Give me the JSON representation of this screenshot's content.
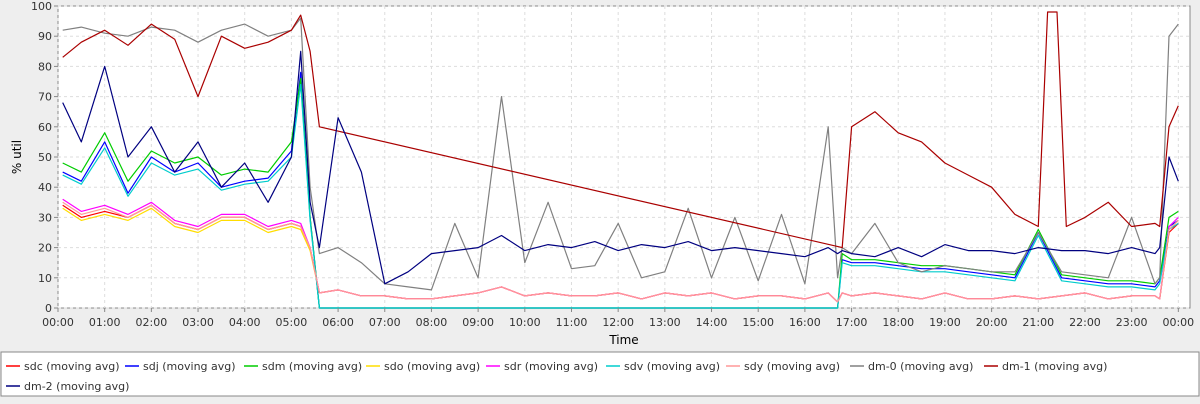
{
  "chart_data": {
    "type": "line",
    "title": "",
    "xlabel": "Time",
    "ylabel": "% util",
    "ylim": [
      0,
      100
    ],
    "xlim_hours": [
      0,
      24.25
    ],
    "grid": true,
    "legend_position": "bottom",
    "y_ticks": [
      0,
      10,
      20,
      30,
      40,
      50,
      60,
      70,
      80,
      90,
      100
    ],
    "x_ticks": [
      {
        "hour": 0,
        "label": "00:00"
      },
      {
        "hour": 1,
        "label": "01:00"
      },
      {
        "hour": 2,
        "label": "02:00"
      },
      {
        "hour": 3,
        "label": "03:00"
      },
      {
        "hour": 4,
        "label": "04:00"
      },
      {
        "hour": 5,
        "label": "05:00"
      },
      {
        "hour": 6,
        "label": "06:00"
      },
      {
        "hour": 7,
        "label": "07:00"
      },
      {
        "hour": 8,
        "label": "08:00"
      },
      {
        "hour": 9,
        "label": "09:00"
      },
      {
        "hour": 10,
        "label": "10:00"
      },
      {
        "hour": 11,
        "label": "11:00"
      },
      {
        "hour": 12,
        "label": "12:00"
      },
      {
        "hour": 13,
        "label": "13:00"
      },
      {
        "hour": 14,
        "label": "14:00"
      },
      {
        "hour": 15,
        "label": "15:00"
      },
      {
        "hour": 16,
        "label": "16:00"
      },
      {
        "hour": 17,
        "label": "17:00"
      },
      {
        "hour": 18,
        "label": "18:00"
      },
      {
        "hour": 19,
        "label": "19:00"
      },
      {
        "hour": 20,
        "label": "20:00"
      },
      {
        "hour": 21,
        "label": "21:00"
      },
      {
        "hour": 22,
        "label": "22:00"
      },
      {
        "hour": 23,
        "label": "23:00"
      },
      {
        "hour": 24,
        "label": "00:00"
      }
    ],
    "series": [
      {
        "name": "sdc (moving avg)",
        "color": "#ff0000",
        "x": [
          0.1,
          0.5,
          1,
          1.5,
          2,
          2.5,
          3,
          3.5,
          4,
          4.5,
          5,
          5.2,
          5.4,
          5.6,
          6,
          6.5,
          7,
          7.5,
          8,
          8.5,
          9,
          9.5,
          10,
          10.5,
          11,
          11.5,
          12,
          12.5,
          13,
          13.5,
          14,
          14.5,
          15,
          15.5,
          16,
          16.5,
          16.7,
          16.8,
          17,
          17.5,
          18,
          18.5,
          19,
          19.5,
          20,
          20.5,
          21,
          21.5,
          22,
          22.5,
          23,
          23.5,
          23.6,
          23.8,
          24
        ],
        "y": [
          34,
          30,
          32,
          30,
          34,
          28,
          26,
          30,
          30,
          26,
          28,
          27,
          20,
          5,
          6,
          4,
          4,
          3,
          3,
          4,
          5,
          7,
          4,
          5,
          4,
          4,
          5,
          3,
          5,
          4,
          5,
          3,
          4,
          4,
          3,
          5,
          2,
          5,
          4,
          5,
          4,
          3,
          5,
          3,
          3,
          4,
          3,
          4,
          5,
          3,
          4,
          4,
          3,
          25,
          28
        ]
      },
      {
        "name": "sdj (moving avg)",
        "color": "#0000ff",
        "x": [
          0.1,
          0.5,
          1,
          1.5,
          2,
          2.5,
          3,
          3.5,
          4,
          4.5,
          5,
          5.2,
          5.4,
          5.6,
          6,
          6.5,
          7,
          7.5,
          8,
          8.5,
          9,
          9.5,
          10,
          10.5,
          11,
          11.5,
          12,
          12.5,
          13,
          13.5,
          14,
          14.5,
          15,
          15.5,
          16,
          16.5,
          16.7,
          16.8,
          17,
          17.5,
          18,
          18.5,
          19,
          19.5,
          20,
          20.5,
          21,
          21.5,
          22,
          22.5,
          23,
          23.5,
          23.6,
          23.8,
          24
        ],
        "y": [
          45,
          42,
          55,
          38,
          50,
          45,
          48,
          40,
          42,
          43,
          52,
          78,
          30,
          0,
          0,
          0,
          0,
          0,
          0,
          0,
          0,
          0,
          0,
          0,
          0,
          0,
          0,
          0,
          0,
          0,
          0,
          0,
          0,
          0,
          0,
          0,
          0,
          16,
          15,
          15,
          14,
          13,
          13,
          12,
          11,
          10,
          25,
          10,
          9,
          8,
          8,
          7,
          9,
          27,
          29
        ]
      },
      {
        "name": "sdm (moving avg)",
        "color": "#00cc00",
        "x": [
          0.1,
          0.5,
          1,
          1.5,
          2,
          2.5,
          3,
          3.5,
          4,
          4.5,
          5,
          5.2,
          5.4,
          5.6,
          6,
          6.5,
          7,
          7.5,
          8,
          8.5,
          9,
          9.5,
          10,
          10.5,
          11,
          11.5,
          12,
          12.5,
          13,
          13.5,
          14,
          14.5,
          15,
          15.5,
          16,
          16.5,
          16.7,
          16.8,
          17,
          17.5,
          18,
          18.5,
          19,
          19.5,
          20,
          20.5,
          21,
          21.5,
          22,
          22.5,
          23,
          23.5,
          23.6,
          23.8,
          24
        ],
        "y": [
          48,
          45,
          58,
          42,
          52,
          48,
          50,
          44,
          46,
          45,
          55,
          76,
          30,
          0,
          0,
          0,
          0,
          0,
          0,
          0,
          0,
          0,
          0,
          0,
          0,
          0,
          0,
          0,
          0,
          0,
          0,
          0,
          0,
          0,
          0,
          0,
          0,
          18,
          16,
          16,
          15,
          14,
          14,
          13,
          12,
          11,
          26,
          11,
          10,
          9,
          9,
          8,
          10,
          30,
          32
        ]
      },
      {
        "name": "sdo (moving avg)",
        "color": "#ffdd00",
        "x": [
          0.1,
          0.5,
          1,
          1.5,
          2,
          2.5,
          3,
          3.5,
          4,
          4.5,
          5,
          5.2,
          5.4,
          5.6,
          6,
          6.5,
          7,
          7.5,
          8,
          8.5,
          9,
          9.5,
          10,
          10.5,
          11,
          11.5,
          12,
          12.5,
          13,
          13.5,
          14,
          14.5,
          15,
          15.5,
          16,
          16.5,
          16.7,
          16.8,
          17,
          17.5,
          18,
          18.5,
          19,
          19.5,
          20,
          20.5,
          21,
          21.5,
          22,
          22.5,
          23,
          23.5,
          23.6,
          23.8,
          24
        ],
        "y": [
          33,
          29,
          31,
          29,
          33,
          27,
          25,
          29,
          29,
          25,
          27,
          26,
          19,
          5,
          6,
          4,
          4,
          3,
          3,
          4,
          5,
          7,
          4,
          5,
          4,
          4,
          5,
          3,
          5,
          4,
          5,
          3,
          4,
          4,
          3,
          5,
          2,
          5,
          4,
          5,
          4,
          3,
          5,
          3,
          3,
          4,
          3,
          4,
          5,
          3,
          4,
          4,
          3,
          26,
          29
        ]
      },
      {
        "name": "sdr (moving avg)",
        "color": "#ff00ff",
        "x": [
          0.1,
          0.5,
          1,
          1.5,
          2,
          2.5,
          3,
          3.5,
          4,
          4.5,
          5,
          5.2,
          5.4,
          5.6,
          6,
          6.5,
          7,
          7.5,
          8,
          8.5,
          9,
          9.5,
          10,
          10.5,
          11,
          11.5,
          12,
          12.5,
          13,
          13.5,
          14,
          14.5,
          15,
          15.5,
          16,
          16.5,
          16.7,
          16.8,
          17,
          17.5,
          18,
          18.5,
          19,
          19.5,
          20,
          20.5,
          21,
          21.5,
          22,
          22.5,
          23,
          23.5,
          23.6,
          23.8,
          24
        ],
        "y": [
          36,
          32,
          34,
          31,
          35,
          29,
          27,
          31,
          31,
          27,
          29,
          28,
          20,
          5,
          6,
          4,
          4,
          3,
          3,
          4,
          5,
          7,
          4,
          5,
          4,
          4,
          5,
          3,
          5,
          4,
          5,
          3,
          4,
          4,
          3,
          5,
          2,
          5,
          4,
          5,
          4,
          3,
          5,
          3,
          3,
          4,
          3,
          4,
          5,
          3,
          4,
          4,
          3,
          27,
          30
        ]
      },
      {
        "name": "sdv (moving avg)",
        "color": "#00cccc",
        "x": [
          0.1,
          0.5,
          1,
          1.5,
          2,
          2.5,
          3,
          3.5,
          4,
          4.5,
          5,
          5.2,
          5.4,
          5.6,
          6,
          6.5,
          7,
          7.5,
          8,
          8.5,
          9,
          9.5,
          10,
          10.5,
          11,
          11.5,
          12,
          12.5,
          13,
          13.5,
          14,
          14.5,
          15,
          15.5,
          16,
          16.5,
          16.7,
          16.8,
          17,
          17.5,
          18,
          18.5,
          19,
          19.5,
          20,
          20.5,
          21,
          21.5,
          22,
          22.5,
          23,
          23.5,
          23.6,
          23.8,
          24
        ],
        "y": [
          44,
          41,
          53,
          37,
          48,
          44,
          46,
          39,
          41,
          42,
          50,
          74,
          29,
          0,
          0,
          0,
          0,
          0,
          0,
          0,
          0,
          0,
          0,
          0,
          0,
          0,
          0,
          0,
          0,
          0,
          0,
          0,
          0,
          0,
          0,
          0,
          0,
          15,
          14,
          14,
          13,
          12,
          12,
          11,
          10,
          9,
          24,
          9,
          8,
          7,
          7,
          6,
          8,
          26,
          28
        ]
      },
      {
        "name": "sdy (moving avg)",
        "color": "#ff9999",
        "x": [
          0.1,
          0.5,
          1,
          1.5,
          2,
          2.5,
          3,
          3.5,
          4,
          4.5,
          5,
          5.2,
          5.4,
          5.6,
          6,
          6.5,
          7,
          7.5,
          8,
          8.5,
          9,
          9.5,
          10,
          10.5,
          11,
          11.5,
          12,
          12.5,
          13,
          13.5,
          14,
          14.5,
          15,
          15.5,
          16,
          16.5,
          16.7,
          16.8,
          17,
          17.5,
          18,
          18.5,
          19,
          19.5,
          20,
          20.5,
          21,
          21.5,
          22,
          22.5,
          23,
          23.5,
          23.6,
          23.8,
          24
        ],
        "y": [
          35,
          31,
          33,
          30,
          34,
          28,
          26,
          30,
          30,
          26,
          28,
          27,
          20,
          5,
          6,
          4,
          4,
          3,
          3,
          4,
          5,
          7,
          4,
          5,
          4,
          4,
          5,
          3,
          5,
          4,
          5,
          3,
          4,
          4,
          3,
          5,
          2,
          5,
          4,
          5,
          4,
          3,
          5,
          3,
          3,
          4,
          3,
          4,
          5,
          3,
          4,
          4,
          3,
          26,
          29
        ]
      },
      {
        "name": "dm-0 (moving avg)",
        "color": "#808080",
        "x": [
          0.1,
          0.5,
          1,
          1.5,
          2,
          2.5,
          3,
          3.5,
          4,
          4.5,
          5,
          5.2,
          5.4,
          5.6,
          6,
          6.5,
          7,
          7.5,
          8,
          8.5,
          9,
          9.5,
          10,
          10.5,
          11,
          11.5,
          12,
          12.5,
          13,
          13.5,
          14,
          14.5,
          15,
          15.5,
          16,
          16.5,
          16.7,
          16.8,
          17,
          17.5,
          18,
          18.5,
          19,
          19.5,
          20,
          20.5,
          21,
          21.5,
          22,
          22.5,
          23,
          23.5,
          23.6,
          23.8,
          24
        ],
        "y": [
          92,
          93,
          91,
          90,
          93,
          92,
          88,
          92,
          94,
          90,
          92,
          96,
          40,
          18,
          20,
          15,
          8,
          7,
          6,
          28,
          10,
          70,
          15,
          35,
          13,
          14,
          28,
          10,
          12,
          33,
          10,
          30,
          9,
          31,
          8,
          60,
          10,
          20,
          18,
          28,
          15,
          12,
          14,
          13,
          12,
          12,
          25,
          12,
          11,
          10,
          30,
          8,
          10,
          90,
          94
        ]
      },
      {
        "name": "dm-1 (moving avg)",
        "color": "#aa0000",
        "x": [
          0.1,
          0.5,
          1,
          1.5,
          2,
          2.5,
          3,
          3.5,
          4,
          4.5,
          5,
          5.2,
          5.4,
          5.6,
          16.8,
          17,
          17.5,
          18,
          18.5,
          19,
          19.5,
          20,
          20.5,
          21,
          21.2,
          21.4,
          21.6,
          22,
          22.5,
          23,
          23.5,
          23.6,
          23.8,
          24
        ],
        "y": [
          83,
          88,
          92,
          87,
          94,
          89,
          70,
          90,
          86,
          88,
          92,
          97,
          85,
          60,
          20,
          60,
          65,
          58,
          55,
          48,
          44,
          40,
          31,
          27,
          98,
          98,
          27,
          30,
          35,
          27,
          28,
          27,
          60,
          67
        ]
      },
      {
        "name": "dm-2 (moving avg)",
        "color": "#000080",
        "x": [
          0.1,
          0.5,
          1,
          1.5,
          2,
          2.5,
          3,
          3.5,
          4,
          4.5,
          5,
          5.2,
          5.4,
          5.6,
          6,
          6.5,
          7,
          7.5,
          8,
          8.5,
          9,
          9.5,
          10,
          10.5,
          11,
          11.5,
          12,
          12.5,
          13,
          13.5,
          14,
          14.5,
          15,
          15.5,
          16,
          16.5,
          16.7,
          16.8,
          17,
          17.5,
          18,
          18.5,
          19,
          19.5,
          20,
          20.5,
          21,
          21.5,
          22,
          22.5,
          23,
          23.5,
          23.6,
          23.8,
          24
        ],
        "y": [
          68,
          55,
          80,
          50,
          60,
          45,
          55,
          40,
          48,
          35,
          50,
          85,
          35,
          20,
          63,
          45,
          8,
          12,
          18,
          19,
          20,
          24,
          19,
          21,
          20,
          22,
          19,
          21,
          20,
          22,
          19,
          20,
          19,
          18,
          17,
          20,
          18,
          19,
          18,
          17,
          20,
          17,
          21,
          19,
          19,
          18,
          20,
          19,
          19,
          18,
          20,
          18,
          20,
          50,
          42
        ]
      }
    ]
  }
}
